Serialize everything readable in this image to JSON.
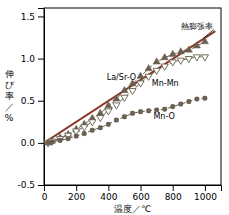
{
  "chart_data": {
    "type": "line",
    "x_label": "温度／℃",
    "y_label": [
      "伸",
      "び",
      "率",
      "／",
      "%"
    ],
    "xlim": [
      0,
      1100
    ],
    "ylim": [
      -0.5,
      1.6
    ],
    "xticks": [
      0,
      200,
      400,
      600,
      800,
      1000
    ],
    "yticks": [
      -0.5,
      {
        "value": 0.0,
        "label": "0.0"
      },
      0.5,
      {
        "value": 1.0,
        "label": "1.0"
      },
      1.5
    ],
    "series": [
      {
        "color": "#8B3A2A",
        "line_style": "solid",
        "x": [
          0,
          1060
        ],
        "values": [
          0.0,
          1.32
        ]
      },
      {
        "color": "#696050",
        "line_style": "dashed",
        "marker": "triangle-up",
        "x": [
          25,
          50,
          100,
          150,
          200,
          250,
          300,
          350,
          400,
          450,
          500,
          550,
          600,
          650,
          700,
          750,
          800,
          850,
          900,
          950,
          1000
        ],
        "values": [
          0.0,
          0.02,
          0.06,
          0.1,
          0.16,
          0.22,
          0.29,
          0.35,
          0.44,
          0.52,
          0.62,
          0.7,
          0.79,
          0.88,
          0.96,
          1.01,
          1.05,
          1.08,
          1.1,
          1.15,
          1.2
        ]
      },
      {
        "color": "#696050",
        "line_style": "dashed",
        "marker": "triangle-down-open",
        "x": [
          25,
          50,
          100,
          150,
          200,
          250,
          300,
          350,
          400,
          450,
          500,
          550,
          600,
          650,
          700,
          750,
          800,
          850,
          900,
          950,
          1000
        ],
        "values": [
          0.0,
          0.02,
          0.05,
          0.09,
          0.14,
          0.19,
          0.25,
          0.3,
          0.38,
          0.45,
          0.54,
          0.62,
          0.71,
          0.79,
          0.86,
          0.91,
          0.96,
          0.98,
          1.0,
          1.02,
          1.02
        ]
      },
      {
        "color": "#696050",
        "line_style": "dashed",
        "marker": "circle",
        "x": [
          25,
          50,
          100,
          150,
          200,
          250,
          300,
          350,
          400,
          450,
          500,
          550,
          600,
          650,
          700,
          750,
          800,
          850,
          900,
          950,
          1000
        ],
        "values": [
          0.0,
          0.01,
          0.03,
          0.05,
          0.08,
          0.11,
          0.15,
          0.18,
          0.22,
          0.27,
          0.31,
          0.35,
          0.37,
          0.38,
          0.39,
          0.4,
          0.43,
          0.46,
          0.49,
          0.52,
          0.53
        ],
        "error": [
          0.018,
          0.018,
          0.018,
          0.018,
          0.018,
          0.018,
          0.018,
          0.018,
          0.018,
          0.018,
          0.018,
          0.018,
          0.018,
          0.018,
          0.018,
          0.018,
          0.018,
          0.018,
          0.018,
          0.018,
          0.018
        ]
      }
    ],
    "annotations": [
      {
        "text": "熱膨張率",
        "x": 850,
        "y": 1.38,
        "arrow_x": 990,
        "arrow_y": 1.24
      },
      {
        "text": "La/Sr-O",
        "x": 390,
        "y": 0.78
      },
      {
        "text": "Mn-Mn",
        "x": 670,
        "y": 0.71
      },
      {
        "text": "Mn-O",
        "x": 680,
        "y": 0.31
      }
    ]
  }
}
